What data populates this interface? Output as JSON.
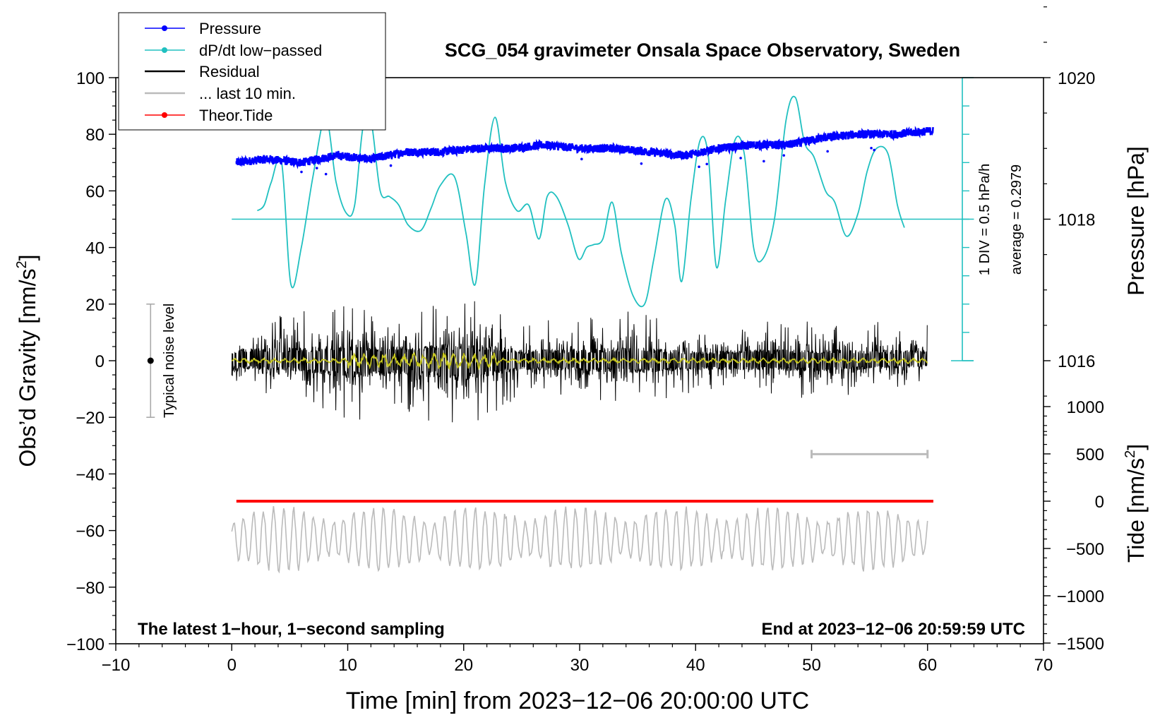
{
  "chart_data": {
    "type": "line",
    "title": "SCG_054 gravimeter Onsala Space Observatory, Sweden",
    "xlabel": "Time [min] from 2023−12−06 20:00:00 UTC",
    "ylabel_main": "Obs’d Gravity [nm/s",
    "ylabel_sup": "2",
    "ylabel_close": "]",
    "ylabel_pressure": "Pressure [hPa]",
    "ylabel_tide_main": "Tide [nm/s",
    "ylabel_tide_sup": "2",
    "ylabel_tide_close": "]",
    "xlim": [
      -10,
      70
    ],
    "ylim": [
      -100,
      100
    ],
    "x_ticks": [
      "−10",
      "0",
      "10",
      "20",
      "30",
      "40",
      "50",
      "60",
      "70"
    ],
    "y_ticks": [
      "−100",
      "−80",
      "−60",
      "−40",
      "−20",
      "0",
      "20",
      "40",
      "60",
      "80",
      "100"
    ],
    "pressure_ticks": [
      "1016",
      "1018",
      "1020"
    ],
    "pressure_values": [
      1016,
      1018,
      1020
    ],
    "tide_ticks": [
      "−1500",
      "−1000",
      "−500",
      "0",
      "500",
      "1000"
    ],
    "tide_values": [
      -1500,
      -1000,
      -500,
      0,
      500,
      1000
    ],
    "dpdt_scale_label": "1 DIV = 0.5 hPa/h",
    "dpdt_average_label": "average = 0.2979",
    "noise_label": "Typical noise level",
    "bottom_left_note": "The latest 1−hour, 1−second sampling",
    "bottom_right_note": "End at 2023−12−06 20:59:59 UTC",
    "legend": [
      {
        "label": "Pressure",
        "color": "#0000ff"
      },
      {
        "label": "dP/dt low−passed",
        "color": "#20c0c0"
      },
      {
        "label": "Residual",
        "color": "#000000"
      },
      {
        "label": "... last 10 min.",
        "color": "#bbbbbb"
      },
      {
        "label": "Theor.Tide",
        "color": "#ff0000"
      }
    ],
    "colors": {
      "pressure": "#0000ff",
      "dpdt": "#20c0c0",
      "residual": "#000000",
      "residual_smooth": "#c8c820",
      "last10": "#bbbbbb",
      "tide": "#ff0000",
      "axis": "#000000"
    },
    "series": {
      "pressure_hPa": {
        "x": [
          0.4,
          3,
          6,
          9,
          12,
          15,
          18,
          21,
          24,
          27,
          30,
          33,
          36,
          39,
          42,
          45,
          48,
          51,
          54,
          57,
          60.5
        ],
        "y": [
          1018.8,
          1018.85,
          1018.8,
          1018.9,
          1018.85,
          1018.95,
          1018.95,
          1019.0,
          1019.0,
          1019.05,
          1019.0,
          1019.0,
          1018.95,
          1018.9,
          1019.0,
          1019.05,
          1019.05,
          1019.15,
          1019.2,
          1019.2,
          1019.25
        ]
      },
      "dpdt_lowpassed": {
        "x": [
          2.2,
          2.8,
          3.4,
          4.3,
          5.1,
          6.0,
          7.0,
          8.1,
          9.0,
          9.9,
          10.6,
          11.3,
          12.0,
          12.8,
          13.6,
          14.4,
          15.2,
          16.3,
          17.2,
          18.0,
          19.2,
          20.2,
          21.0,
          21.8,
          22.7,
          23.6,
          24.6,
          25.6,
          26.5,
          27.2,
          28.0,
          29.0,
          29.9,
          30.6,
          31.2,
          32.0,
          32.8,
          33.6,
          34.6,
          35.6,
          36.4,
          37.4,
          38.2,
          38.8,
          39.6,
          40.4,
          41.1,
          41.8,
          42.6,
          43.4,
          44.2,
          45.0,
          45.8,
          46.8,
          47.8,
          48.6,
          49.4,
          50.2,
          51.2,
          52.0,
          53.0,
          54.0,
          54.8,
          55.6,
          56.6,
          57.4,
          58.0
        ],
        "y": [
          53,
          55,
          63,
          70,
          27,
          40,
          65,
          86,
          63,
          52,
          55,
          82,
          85,
          60,
          58,
          55,
          48,
          46,
          54,
          62,
          65,
          45,
          27,
          62,
          86,
          63,
          53,
          55,
          43,
          58,
          58,
          48,
          36,
          40,
          41,
          43,
          56,
          38,
          23,
          20,
          36,
          57,
          48,
          28,
          57,
          78,
          72,
          33,
          57,
          78,
          73,
          40,
          36,
          50,
          85,
          93,
          77,
          72,
          60,
          56,
          44,
          52,
          67,
          75,
          73,
          55,
          47
        ]
      },
      "theoretical_tide_nm_s2": {
        "x": [
          0.4,
          60.5
        ],
        "y": [
          0,
          0
        ]
      },
      "residual_envelope_nm_s2": {
        "x": [
          0,
          5,
          10,
          15,
          20,
          25,
          30,
          35,
          40,
          45,
          50,
          55,
          60
        ],
        "y_max": [
          15,
          17,
          20,
          18,
          23,
          14,
          15,
          18,
          12,
          14,
          14,
          14,
          13
        ],
        "y_min": [
          -10,
          -13,
          -22,
          -18,
          -26,
          -12,
          -13,
          -16,
          -12,
          -12,
          -14,
          -11,
          -8
        ]
      },
      "last10_window": {
        "x": [
          50,
          60
        ]
      },
      "last10_display_offset_nm_s2": -63,
      "dpdt_zero_level": 50,
      "dpdt_scale_range": [
        0,
        100
      ]
    },
    "noise_bar": {
      "x": -7,
      "center": 0,
      "min": -20,
      "max": 20
    }
  }
}
